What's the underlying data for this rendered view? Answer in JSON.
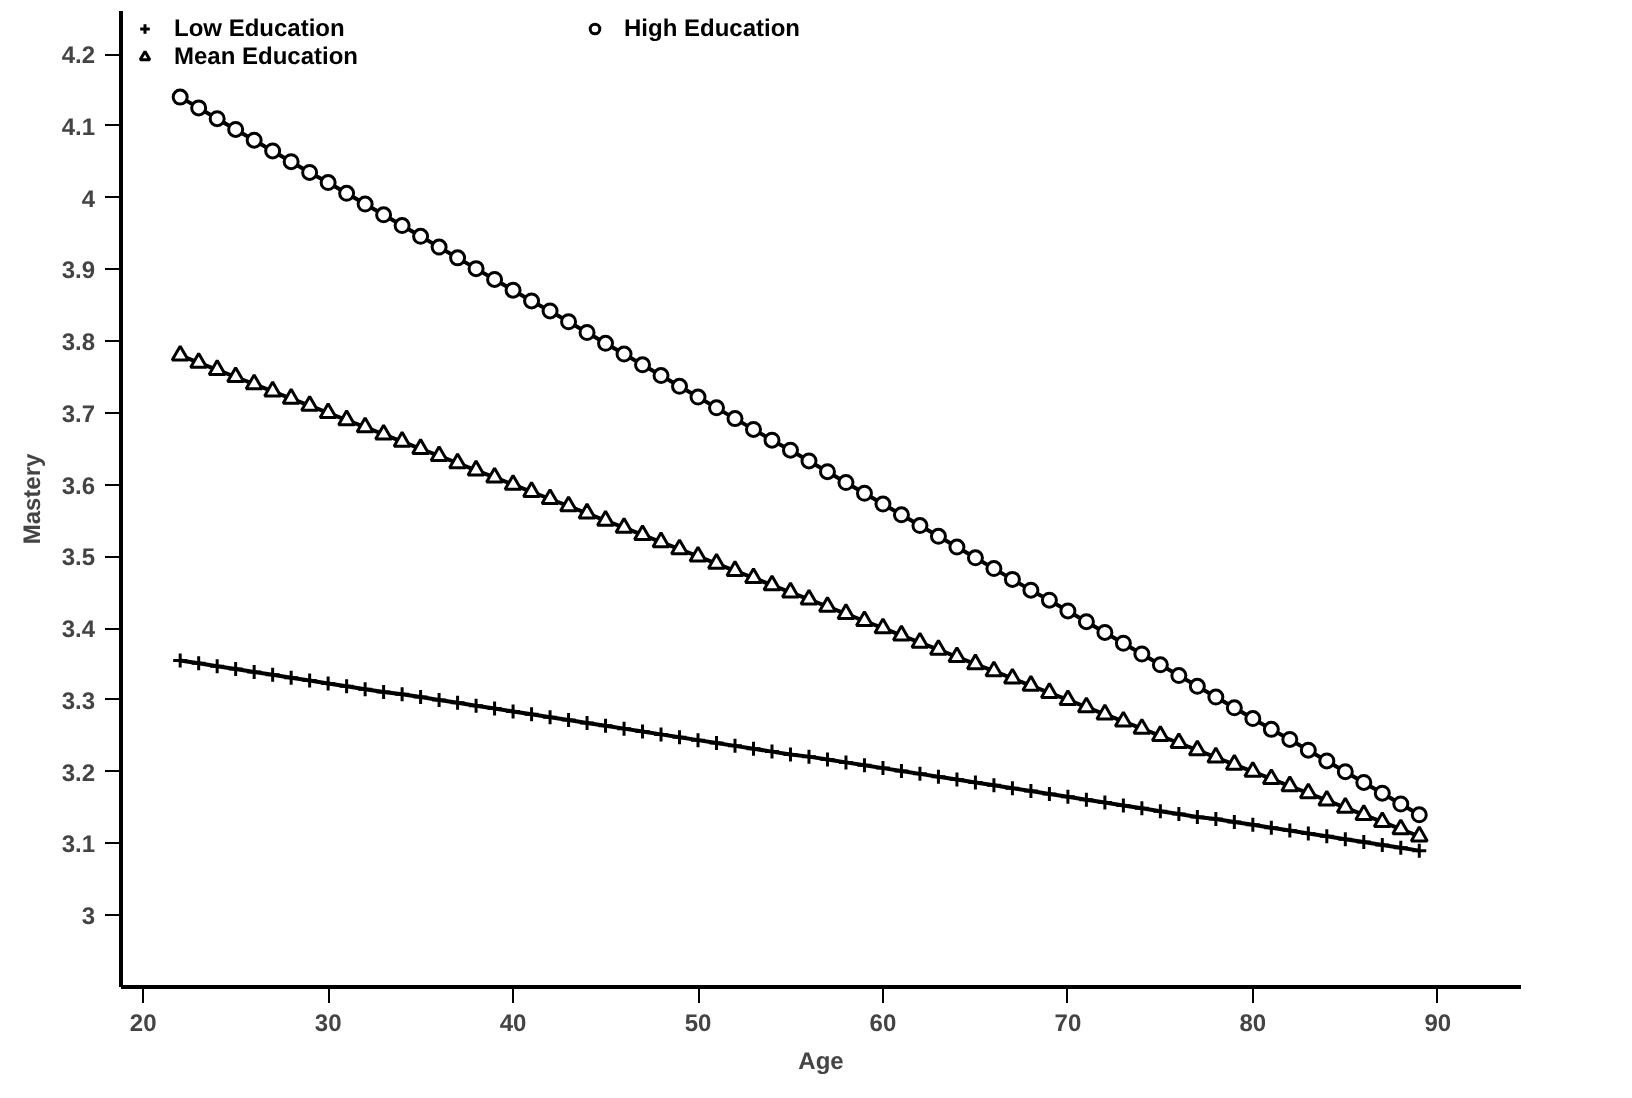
{
  "chart_data": {
    "type": "line",
    "xlabel": "Age",
    "ylabel": "Mastery",
    "x": [
      22,
      23,
      24,
      25,
      26,
      27,
      28,
      29,
      30,
      31,
      32,
      33,
      34,
      35,
      36,
      37,
      38,
      39,
      40,
      41,
      42,
      43,
      44,
      45,
      46,
      47,
      48,
      49,
      50,
      51,
      52,
      53,
      54,
      55,
      56,
      57,
      58,
      59,
      60,
      61,
      62,
      63,
      64,
      65,
      66,
      67,
      68,
      69,
      70,
      71,
      72,
      73,
      74,
      75,
      76,
      77,
      78,
      79,
      80,
      81,
      82,
      83,
      84,
      85,
      86,
      87,
      88,
      89
    ],
    "series": [
      {
        "name": "Low Education",
        "color": "#000000",
        "marker": "cross",
        "values": [
          3.355,
          3.351,
          3.347,
          3.343,
          3.339,
          3.335,
          3.331,
          3.327,
          3.323,
          3.319,
          3.315,
          3.311,
          3.308,
          3.304,
          3.3,
          3.296,
          3.292,
          3.288,
          3.284,
          3.28,
          3.276,
          3.272,
          3.268,
          3.264,
          3.26,
          3.256,
          3.252,
          3.248,
          3.244,
          3.24,
          3.236,
          3.232,
          3.228,
          3.224,
          3.221,
          3.217,
          3.213,
          3.209,
          3.205,
          3.201,
          3.197,
          3.193,
          3.189,
          3.185,
          3.181,
          3.177,
          3.173,
          3.169,
          3.165,
          3.161,
          3.157,
          3.153,
          3.149,
          3.145,
          3.141,
          3.137,
          3.134,
          3.13,
          3.126,
          3.122,
          3.118,
          3.114,
          3.11,
          3.106,
          3.102,
          3.098,
          3.094,
          3.09
        ]
      },
      {
        "name": "Mean Education",
        "color": "#000000",
        "marker": "triangle",
        "values": [
          3.78,
          3.77,
          3.76,
          3.75,
          3.74,
          3.73,
          3.72,
          3.71,
          3.7,
          3.69,
          3.68,
          3.67,
          3.66,
          3.65,
          3.64,
          3.63,
          3.62,
          3.61,
          3.6,
          3.59,
          3.58,
          3.57,
          3.56,
          3.55,
          3.54,
          3.53,
          3.52,
          3.51,
          3.5,
          3.49,
          3.48,
          3.47,
          3.46,
          3.45,
          3.44,
          3.43,
          3.42,
          3.41,
          3.4,
          3.39,
          3.38,
          3.37,
          3.36,
          3.35,
          3.34,
          3.33,
          3.32,
          3.31,
          3.3,
          3.29,
          3.28,
          3.27,
          3.26,
          3.25,
          3.24,
          3.23,
          3.22,
          3.21,
          3.2,
          3.19,
          3.18,
          3.17,
          3.16,
          3.15,
          3.14,
          3.13,
          3.12,
          3.11
        ]
      },
      {
        "name": "High Education",
        "color": "#000000",
        "marker": "circle",
        "values": [
          4.14,
          4.125,
          4.11,
          4.095,
          4.08,
          4.065,
          4.05,
          4.035,
          4.021,
          4.006,
          3.991,
          3.976,
          3.961,
          3.946,
          3.931,
          3.916,
          3.901,
          3.886,
          3.871,
          3.856,
          3.842,
          3.827,
          3.812,
          3.797,
          3.782,
          3.767,
          3.752,
          3.737,
          3.722,
          3.707,
          3.692,
          3.677,
          3.662,
          3.648,
          3.633,
          3.618,
          3.603,
          3.588,
          3.573,
          3.558,
          3.543,
          3.528,
          3.513,
          3.498,
          3.483,
          3.468,
          3.453,
          3.439,
          3.424,
          3.409,
          3.394,
          3.379,
          3.364,
          3.349,
          3.334,
          3.319,
          3.304,
          3.289,
          3.274,
          3.259,
          3.245,
          3.23,
          3.215,
          3.2,
          3.185,
          3.17,
          3.155,
          3.14
        ]
      }
    ],
    "xlim": [
      18.8,
      94.5
    ],
    "ylim": [
      2.9,
      4.26
    ],
    "xticks": [
      20,
      30,
      40,
      50,
      60,
      70,
      80,
      90
    ],
    "yticks": [
      {
        "value": 3,
        "label": "3"
      },
      3.1,
      3.2,
      3.3,
      3.4,
      3.5,
      3.6,
      3.7,
      3.8,
      3.9,
      {
        "value": 4,
        "label": "4"
      },
      4.1,
      4.2
    ],
    "legend": "top",
    "grid": false,
    "line_style": "solid"
  }
}
